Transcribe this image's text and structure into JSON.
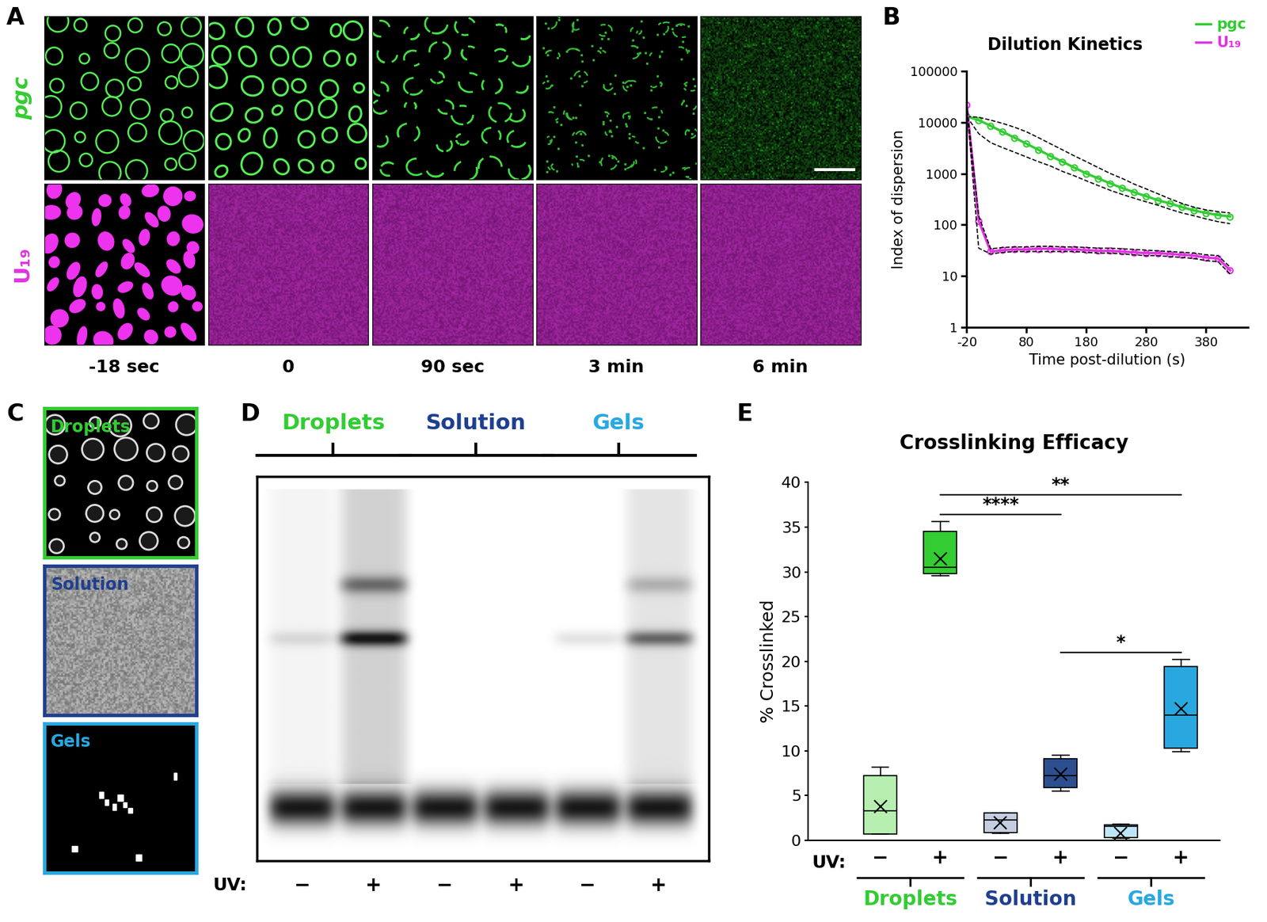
{
  "panel_labels": [
    "A",
    "B",
    "C",
    "D",
    "E"
  ],
  "panel_A": {
    "rows": [
      {
        "label": "pgc",
        "color": "#33cc33"
      },
      {
        "label": "U₁₉",
        "color": "#e033e0"
      }
    ],
    "times": [
      "-18 sec",
      "0",
      "90 sec",
      "3 min",
      "6 min"
    ]
  },
  "panel_C": {
    "images": [
      {
        "label": "Droplets",
        "color": "#33cc33"
      },
      {
        "label": "Solution",
        "color": "#1f3f8f"
      },
      {
        "label": "Gels",
        "color": "#29a8e0"
      }
    ]
  },
  "panel_D": {
    "groups": [
      {
        "name": "Droplets",
        "color": "#33cc33"
      },
      {
        "name": "Solution",
        "color": "#1f3f8f"
      },
      {
        "name": "Gels",
        "color": "#29a8e0"
      }
    ],
    "lanes": [
      "−",
      "+",
      "−",
      "+",
      "−",
      "+"
    ],
    "lane_title": "UV:"
  },
  "chart_data": [
    {
      "type": "line",
      "title": "Dilution Kinetics",
      "x_label": "Time post-dilution (s)",
      "y_label": "Index of dispersion",
      "x": [
        -20,
        0,
        20,
        40,
        60,
        80,
        100,
        120,
        140,
        160,
        180,
        200,
        220,
        240,
        260,
        280,
        300,
        320,
        340,
        360,
        380,
        400,
        420
      ],
      "series": [
        {
          "name": "pgc",
          "color": "#33cc33",
          "marker": "o",
          "values": [
            13000,
            11000,
            8500,
            6500,
            5000,
            3800,
            2900,
            2200,
            1700,
            1300,
            1000,
            800,
            640,
            520,
            430,
            360,
            300,
            260,
            220,
            190,
            170,
            155,
            145
          ],
          "upper": [
            13000,
            12500,
            11000,
            9500,
            8000,
            6500,
            5000,
            3800,
            2900,
            2200,
            1700,
            1300,
            1000,
            800,
            620,
            500,
            400,
            320,
            260,
            220,
            195,
            180,
            170
          ],
          "lower": [
            13000,
            6000,
            4000,
            3200,
            2600,
            2100,
            1700,
            1400,
            1100,
            900,
            720,
            580,
            470,
            390,
            330,
            280,
            240,
            200,
            170,
            150,
            130,
            115,
            105
          ]
        },
        {
          "name": "U₁₉",
          "color": "#e033e0",
          "marker": "o",
          "values": [
            22000,
            120,
            30,
            32,
            33,
            33,
            34,
            34,
            33,
            33,
            32,
            31,
            31,
            30,
            29,
            28,
            28,
            27,
            26,
            25,
            23,
            22,
            13
          ],
          "upper": [
            22000,
            150,
            34,
            36,
            37,
            37,
            38,
            38,
            37,
            37,
            36,
            35,
            35,
            34,
            33,
            32,
            31,
            30,
            29,
            28,
            26,
            25,
            15
          ],
          "lower": [
            22000,
            35,
            27,
            29,
            30,
            30,
            30,
            30,
            30,
            30,
            29,
            28,
            28,
            27,
            26,
            25,
            25,
            24,
            23,
            22,
            20,
            19,
            11
          ]
        }
      ],
      "log": "y",
      "xlim": [
        -20,
        450
      ],
      "xticks": [
        -20,
        80,
        180,
        280,
        380
      ],
      "ylim": [
        1,
        100000
      ],
      "yticks": [
        1,
        10,
        100,
        1000,
        10000,
        100000
      ],
      "legend": "upper right"
    },
    {
      "type": "box",
      "title": "Crosslinking Efficacy",
      "y_label": "% Crosslinked",
      "categories": [
        "−",
        "+",
        "−",
        "+",
        "−",
        "+"
      ],
      "tick_title": "UV:",
      "groups": [
        {
          "name": "Droplets",
          "color": "#33cc33",
          "members": [
            0,
            1
          ]
        },
        {
          "name": "Solution",
          "color": "#1f3f8f",
          "members": [
            2,
            3
          ]
        },
        {
          "name": "Gels",
          "color": "#29a8e0",
          "members": [
            4,
            5
          ]
        }
      ],
      "boxes": [
        {
          "whislo": 0.7,
          "q1": 0.7,
          "med": 3.3,
          "q3": 7.2,
          "whishi": 8.2,
          "mean": 3.8
        },
        {
          "whislo": 29.6,
          "q1": 29.8,
          "med": 30.5,
          "q3": 34.5,
          "whishi": 35.6,
          "mean": 31.5
        },
        {
          "whislo": 0.8,
          "q1": 0.9,
          "med": 2.3,
          "q3": 3.1,
          "whishi": 3.1,
          "mean": 2.0
        },
        {
          "whislo": 5.5,
          "q1": 5.9,
          "med": 7.2,
          "q3": 9.1,
          "whishi": 9.5,
          "mean": 7.4
        },
        {
          "whislo": 0.2,
          "q1": 0.3,
          "med": 1.6,
          "q3": 1.7,
          "whishi": 1.8,
          "mean": 0.8
        },
        {
          "whislo": 9.9,
          "q1": 10.3,
          "med": 14.0,
          "q3": 19.4,
          "whishi": 20.2,
          "mean": 14.7
        }
      ],
      "colors": [
        "#b6efb0",
        "#33cc33",
        "#c5cde0",
        "#2d4f8f",
        "#bfe6f7",
        "#29a8e0"
      ],
      "ylim": [
        0,
        40
      ],
      "yticks": [
        0,
        5,
        10,
        15,
        20,
        25,
        30,
        35,
        40
      ],
      "significance": [
        {
          "from": 1,
          "to": 3,
          "label": "****"
        },
        {
          "from": 1,
          "to": 5,
          "label": "**"
        },
        {
          "from": 3,
          "to": 5,
          "label": "*"
        }
      ]
    }
  ]
}
